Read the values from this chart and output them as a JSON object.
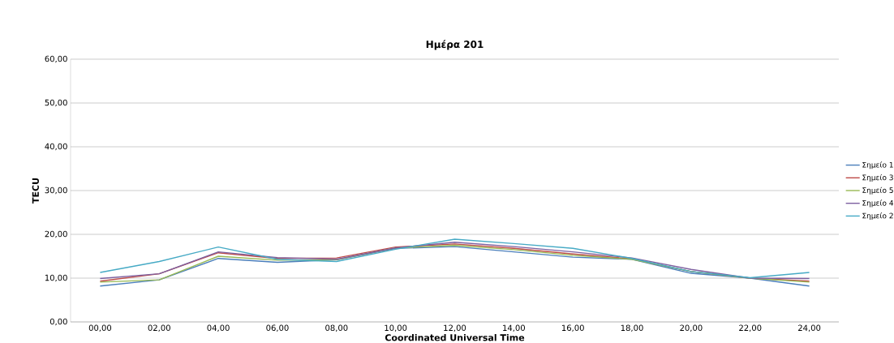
{
  "chart_data": {
    "type": "line",
    "title": "Ημέρα 201",
    "xlabel": "Coordinated Universal Time",
    "ylabel": "TECU",
    "categories": [
      "00,00",
      "02,00",
      "04,00",
      "06,00",
      "08,00",
      "10,00",
      "12,00",
      "14,00",
      "16,00",
      "18,00",
      "20,00",
      "22,00",
      "24,00"
    ],
    "series": [
      {
        "name": "Σημείο 1",
        "color": "#4a7ebb",
        "values": [
          8.2,
          9.6,
          14.5,
          13.6,
          14.2,
          16.8,
          17.2,
          16.0,
          14.8,
          14.3,
          11.1,
          10.0,
          8.2
        ]
      },
      {
        "name": "Σημείο 3",
        "color": "#be4b48",
        "values": [
          9.3,
          11.0,
          15.8,
          14.5,
          14.6,
          17.1,
          17.8,
          16.8,
          15.5,
          14.4,
          11.5,
          10.0,
          9.3
        ]
      },
      {
        "name": "Σημείο 5",
        "color": "#98b954",
        "values": [
          9.1,
          9.6,
          15.0,
          14.1,
          14.2,
          16.9,
          17.5,
          16.5,
          15.2,
          14.3,
          11.5,
          10.0,
          9.1
        ]
      },
      {
        "name": "Σημείο 4",
        "color": "#7d60a0",
        "values": [
          9.9,
          11.0,
          16.0,
          14.7,
          14.3,
          16.9,
          18.2,
          17.2,
          16.0,
          14.6,
          12.0,
          10.0,
          9.9
        ]
      },
      {
        "name": "Σημείο 2",
        "color": "#46aac5",
        "values": [
          11.3,
          13.8,
          17.1,
          14.3,
          13.8,
          16.6,
          18.9,
          17.9,
          16.8,
          14.5,
          11.5,
          10.1,
          11.3
        ]
      }
    ],
    "ylim": [
      0,
      60
    ],
    "yticks": [
      {
        "value": 0,
        "label": "0,00"
      },
      {
        "value": 10,
        "label": "10,00"
      },
      {
        "value": 20,
        "label": "20,00"
      },
      {
        "value": 30,
        "label": "30,00"
      },
      {
        "value": 40,
        "label": "40,00"
      },
      {
        "value": 50,
        "label": "50,00"
      },
      {
        "value": 60,
        "label": "60,00"
      }
    ],
    "grid": "y",
    "legend": "right",
    "marker": "none",
    "line_style": "solid"
  }
}
